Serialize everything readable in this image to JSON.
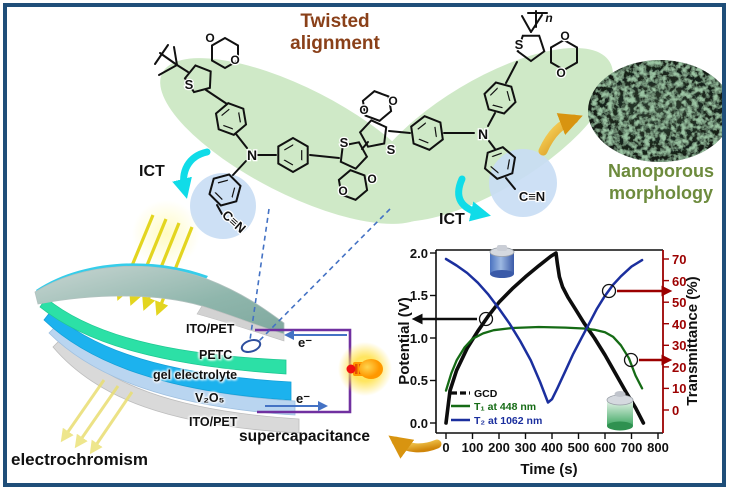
{
  "figure": {
    "title": "Twisted alignment",
    "nanoporous_label": "Nanoporous morphology",
    "ict_left": "ICT",
    "ict_right": "ICT",
    "electrochromism": "electrochromism",
    "supercapacitance": "supercapacitance",
    "electron_top": "e⁻",
    "electron_bottom": "e⁻",
    "polymer_repeat": "n"
  },
  "device": {
    "layers": [
      "ITO/PET",
      "PETC",
      "gel electrolyte",
      "V₂O₅",
      "ITO/PET"
    ]
  },
  "atoms": {
    "S": "S",
    "O": "O",
    "N": "N",
    "CN": "C≡N"
  },
  "colors": {
    "frame": "#1F4E79",
    "title": "#8A4019",
    "nanoporous_text": "#6D8B3D",
    "ict_arrow": "#10DCE8",
    "cn_red": "#E8000D",
    "n_blue": "#2222CC",
    "ellipse_green": "#CFE9C7",
    "highlight_blue": "#C8DDF4",
    "circuit_purple": "#7030A0",
    "electron_arrow": "#4472C4",
    "light_ray": "#E3D51F",
    "gold_arrow": "#E0A51A",
    "right_axis": "#9C0000",
    "layer_ito": "#D9D9D9",
    "layer_petc": "#2CE0A6",
    "layer_gel": "#1CB2EE",
    "layer_v2o5": "#B9D5F0"
  },
  "chart_data": {
    "type": "line",
    "title": "",
    "xlabel": "Time (s)",
    "ylabel_left": "Potential (V)",
    "ylabel_right": "Transmittance (%)",
    "xlim": [
      0,
      800
    ],
    "ylim_left": [
      0.0,
      2.0
    ],
    "ylim_right": [
      0,
      70
    ],
    "grid": false,
    "legend_position": "lower-left",
    "xticks": [
      "0",
      "100",
      "200",
      "300",
      "400",
      "500",
      "600",
      "700",
      "800"
    ],
    "yticks_left": [
      "0.0",
      "0.5",
      "1.0",
      "1.5",
      "2.0"
    ],
    "yticks_right": [
      "0",
      "10",
      "20",
      "30",
      "40",
      "50",
      "60",
      "70"
    ],
    "legend": [
      {
        "label": "GCD",
        "color": "#0d0d0d"
      },
      {
        "label": "T₁ at 448 nm",
        "color": "#156b15"
      },
      {
        "label": "T₂ at 1062 nm",
        "color": "#1b2f9e"
      }
    ],
    "series": [
      {
        "name": "GCD",
        "axis": "left",
        "color": "#0d0d0d",
        "width": 3.6,
        "points": [
          [
            0,
            0
          ],
          [
            15,
            0.38
          ],
          [
            40,
            0.62
          ],
          [
            80,
            0.88
          ],
          [
            120,
            1.08
          ],
          [
            160,
            1.26
          ],
          [
            200,
            1.42
          ],
          [
            250,
            1.58
          ],
          [
            300,
            1.72
          ],
          [
            350,
            1.85
          ],
          [
            395,
            1.96
          ],
          [
            415,
            2.0
          ],
          [
            420,
            1.88
          ],
          [
            428,
            1.72
          ],
          [
            440,
            1.6
          ],
          [
            460,
            1.48
          ],
          [
            490,
            1.33
          ],
          [
            520,
            1.18
          ],
          [
            560,
            1.0
          ],
          [
            600,
            0.8
          ],
          [
            640,
            0.58
          ],
          [
            680,
            0.36
          ],
          [
            715,
            0.18
          ],
          [
            745,
            0.0
          ]
        ]
      },
      {
        "name": "T1 at 448 nm",
        "axis": "right",
        "color": "#156b15",
        "width": 2.3,
        "points": [
          [
            0,
            9
          ],
          [
            20,
            17
          ],
          [
            40,
            23
          ],
          [
            70,
            29
          ],
          [
            100,
            33
          ],
          [
            140,
            35.5
          ],
          [
            180,
            37
          ],
          [
            250,
            38
          ],
          [
            350,
            38.5
          ],
          [
            450,
            38.2
          ],
          [
            520,
            37.8
          ],
          [
            560,
            37.2
          ],
          [
            600,
            36
          ],
          [
            630,
            34
          ],
          [
            660,
            30
          ],
          [
            690,
            24
          ],
          [
            715,
            16
          ],
          [
            740,
            10
          ]
        ]
      },
      {
        "name": "T2 at 1062 nm",
        "axis": "right",
        "color": "#1b2f9e",
        "width": 2.5,
        "points": [
          [
            0,
            70
          ],
          [
            40,
            67
          ],
          [
            80,
            63.5
          ],
          [
            120,
            59
          ],
          [
            160,
            53.5
          ],
          [
            200,
            47
          ],
          [
            240,
            40
          ],
          [
            280,
            32
          ],
          [
            320,
            23
          ],
          [
            355,
            13
          ],
          [
            385,
            3.5
          ],
          [
            400,
            5
          ],
          [
            420,
            10
          ],
          [
            450,
            18
          ],
          [
            480,
            26
          ],
          [
            510,
            33
          ],
          [
            540,
            40
          ],
          [
            570,
            47
          ],
          [
            600,
            53
          ],
          [
            630,
            58
          ],
          [
            660,
            62
          ],
          [
            700,
            66.5
          ],
          [
            740,
            69.5
          ]
        ]
      }
    ],
    "annotations": [
      {
        "type": "circle+arrow-left",
        "on": "GCD",
        "t": 150,
        "value_V": 1.22
      },
      {
        "type": "circle+arrow-right",
        "on": "T2",
        "t": 620,
        "value_pct": 55
      },
      {
        "type": "circle+arrow-right",
        "on": "T1",
        "t": 695,
        "value_pct": 23
      }
    ]
  }
}
